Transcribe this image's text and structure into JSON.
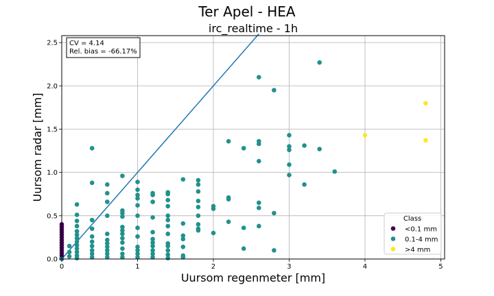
{
  "chart_data": {
    "type": "scatter",
    "title": "Ter Apel - HEA",
    "subtitle": "irc_realtime - 1h",
    "xlabel": "Uursom regenmeter [mm]",
    "ylabel": "Uursom radar [mm]",
    "xlim": [
      0,
      5.05
    ],
    "ylim": [
      0,
      2.58
    ],
    "xticks": [
      "0",
      "1",
      "2",
      "3",
      "4",
      "5"
    ],
    "yticks": [
      "0.0",
      "0.5",
      "1.0",
      "1.5",
      "2.0",
      "2.5"
    ],
    "grid": true,
    "stats_box": {
      "line1": "CV = 4.14",
      "line2": "Rel. bias = -66.17%"
    },
    "legend": {
      "title": "Class",
      "position": "lower-right"
    },
    "reference_line": {
      "label": "",
      "points": [
        [
          0,
          0
        ],
        [
          2.6,
          2.6
        ]
      ],
      "color": "#1f77b4"
    },
    "series": [
      {
        "name": "<0.1 mm",
        "color": "#440154",
        "points": [
          [
            0,
            0.4
          ],
          [
            0,
            0.37
          ],
          [
            0,
            0.34
          ],
          [
            0,
            0.31
          ],
          [
            0,
            0.28
          ],
          [
            0,
            0.25
          ],
          [
            0,
            0.22
          ],
          [
            0,
            0.19
          ],
          [
            0,
            0.16
          ],
          [
            0,
            0.13
          ],
          [
            0,
            0.1
          ],
          [
            0,
            0.07
          ],
          [
            0,
            0.04
          ],
          [
            0,
            0.01
          ]
        ]
      },
      {
        "name": "0.1-4 mm",
        "color": "#21918c",
        "points": [
          [
            0,
            0
          ],
          [
            0.1,
            0.03
          ],
          [
            0.1,
            0.08
          ],
          [
            0.1,
            0.15
          ],
          [
            0.2,
            0.63
          ],
          [
            0.2,
            0.51
          ],
          [
            0.2,
            0.44
          ],
          [
            0.2,
            0.38
          ],
          [
            0.2,
            0.32
          ],
          [
            0.2,
            0.28
          ],
          [
            0.2,
            0.24
          ],
          [
            0.2,
            0.2
          ],
          [
            0.2,
            0.16
          ],
          [
            0.2,
            0.12
          ],
          [
            0.2,
            0.08
          ],
          [
            0.2,
            0.04
          ],
          [
            0.2,
            0.01
          ],
          [
            0.4,
            1.28
          ],
          [
            0.4,
            0.88
          ],
          [
            0.4,
            0.45
          ],
          [
            0.4,
            0.35
          ],
          [
            0.4,
            0.26
          ],
          [
            0.4,
            0.2
          ],
          [
            0.4,
            0.15
          ],
          [
            0.4,
            0.1
          ],
          [
            0.4,
            0.06
          ],
          [
            0.4,
            0.02
          ],
          [
            0.6,
            0.86
          ],
          [
            0.6,
            0.76
          ],
          [
            0.6,
            0.66
          ],
          [
            0.6,
            0.5
          ],
          [
            0.6,
            0.29
          ],
          [
            0.6,
            0.22
          ],
          [
            0.6,
            0.18
          ],
          [
            0.6,
            0.14
          ],
          [
            0.6,
            0.1
          ],
          [
            0.6,
            0.06
          ],
          [
            0.6,
            0.02
          ],
          [
            0.8,
            0.96
          ],
          [
            0.8,
            0.56
          ],
          [
            0.8,
            0.53
          ],
          [
            0.8,
            0.49
          ],
          [
            0.8,
            0.37
          ],
          [
            0.8,
            0.33
          ],
          [
            0.8,
            0.29
          ],
          [
            0.8,
            0.24
          ],
          [
            0.8,
            0.19
          ],
          [
            0.8,
            0.12
          ],
          [
            0.8,
            0.06
          ],
          [
            0.8,
            0.02
          ],
          [
            1.0,
            0.89
          ],
          [
            1.0,
            0.8
          ],
          [
            1.0,
            0.74
          ],
          [
            1.0,
            0.7
          ],
          [
            1.0,
            0.62
          ],
          [
            1.0,
            0.5
          ],
          [
            1.0,
            0.36
          ],
          [
            1.0,
            0.26
          ],
          [
            1.0,
            0.14
          ],
          [
            1.0,
            0.1
          ],
          [
            1.0,
            0.06
          ],
          [
            1.0,
            0.02
          ],
          [
            1.2,
            0.76
          ],
          [
            1.2,
            0.74
          ],
          [
            1.2,
            0.66
          ],
          [
            1.2,
            0.48
          ],
          [
            1.2,
            0.31
          ],
          [
            1.2,
            0.23
          ],
          [
            1.2,
            0.19
          ],
          [
            1.2,
            0.15
          ],
          [
            1.2,
            0.1
          ],
          [
            1.2,
            0.06
          ],
          [
            1.2,
            0.02
          ],
          [
            1.4,
            0.77
          ],
          [
            1.4,
            0.75
          ],
          [
            1.4,
            0.68
          ],
          [
            1.4,
            0.61
          ],
          [
            1.4,
            0.5
          ],
          [
            1.4,
            0.45
          ],
          [
            1.4,
            0.38
          ],
          [
            1.4,
            0.29
          ],
          [
            1.4,
            0.18
          ],
          [
            1.4,
            0.15
          ],
          [
            1.4,
            0.1
          ],
          [
            1.4,
            0.05
          ],
          [
            1.4,
            0.01
          ],
          [
            1.6,
            0.92
          ],
          [
            1.6,
            0.41
          ],
          [
            1.6,
            0.27
          ],
          [
            1.6,
            0.23
          ],
          [
            1.6,
            0.14
          ],
          [
            1.6,
            0.04
          ],
          [
            1.6,
            0.02
          ],
          [
            1.8,
            0.91
          ],
          [
            1.8,
            0.86
          ],
          [
            1.8,
            0.78
          ],
          [
            1.8,
            0.67
          ],
          [
            1.8,
            0.6
          ],
          [
            1.8,
            0.5
          ],
          [
            1.8,
            0.4
          ],
          [
            1.8,
            0.35
          ],
          [
            1.8,
            0.33
          ],
          [
            2.0,
            0.61
          ],
          [
            2.0,
            0.58
          ],
          [
            2.0,
            0.3
          ],
          [
            2.2,
            1.36
          ],
          [
            2.2,
            0.71
          ],
          [
            2.2,
            0.69
          ],
          [
            2.2,
            0.43
          ],
          [
            2.4,
            1.28
          ],
          [
            2.4,
            0.36
          ],
          [
            2.4,
            0.12
          ],
          [
            2.6,
            2.1
          ],
          [
            2.6,
            1.36
          ],
          [
            2.6,
            1.33
          ],
          [
            2.6,
            1.13
          ],
          [
            2.6,
            0.65
          ],
          [
            2.6,
            0.59
          ],
          [
            2.6,
            0.38
          ],
          [
            2.8,
            1.95
          ],
          [
            2.8,
            0.53
          ],
          [
            2.8,
            0.1
          ],
          [
            3.0,
            1.43
          ],
          [
            3.0,
            1.3
          ],
          [
            3.0,
            1.26
          ],
          [
            3.0,
            1.09
          ],
          [
            3.0,
            0.97
          ],
          [
            3.2,
            1.31
          ],
          [
            3.2,
            0.86
          ],
          [
            3.4,
            2.27
          ],
          [
            3.4,
            1.27
          ],
          [
            3.6,
            1.01
          ]
        ]
      },
      {
        "name": ">4 mm",
        "color": "#fde725",
        "points": [
          [
            4.0,
            1.43
          ],
          [
            4.8,
            1.8
          ],
          [
            4.8,
            1.37
          ]
        ]
      }
    ]
  }
}
